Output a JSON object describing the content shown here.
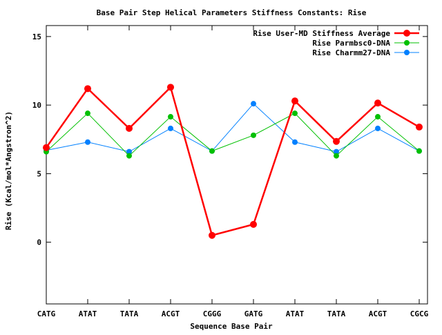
{
  "chart_data": {
    "type": "line",
    "title": "Base Pair Step Helical Parameters Stiffness Constants: Rise",
    "xlabel": "Sequence Base Pair",
    "ylabel": "Rise (Kcal/mol*Angstron^2)",
    "categories": [
      "CATG",
      "ATAT",
      "TATA",
      "ACGT",
      "CGGG",
      "GATG",
      "ATAT",
      "TATA",
      "ACGT",
      "CGCG"
    ],
    "ylim": [
      -4.5,
      15.8
    ],
    "yticks": [
      0,
      5,
      10,
      15
    ],
    "grid": false,
    "legend_position": "top-right",
    "series": [
      {
        "name": "Rise User-MD Stiffness Average",
        "color": "#ff0000",
        "values": [
          6.9,
          11.2,
          8.3,
          11.3,
          0.5,
          1.3,
          10.3,
          7.35,
          10.15,
          8.4
        ]
      },
      {
        "name": "Rise Parmbsc0-DNA",
        "color": "#00c000",
        "values": [
          6.6,
          9.4,
          6.3,
          9.15,
          6.65,
          7.8,
          9.4,
          6.3,
          9.15,
          6.65
        ]
      },
      {
        "name": "Rise Charmm27-DNA",
        "color": "#0080ff",
        "values": [
          6.7,
          7.3,
          6.6,
          8.3,
          6.65,
          10.1,
          7.3,
          6.6,
          8.3,
          6.65
        ]
      }
    ]
  }
}
